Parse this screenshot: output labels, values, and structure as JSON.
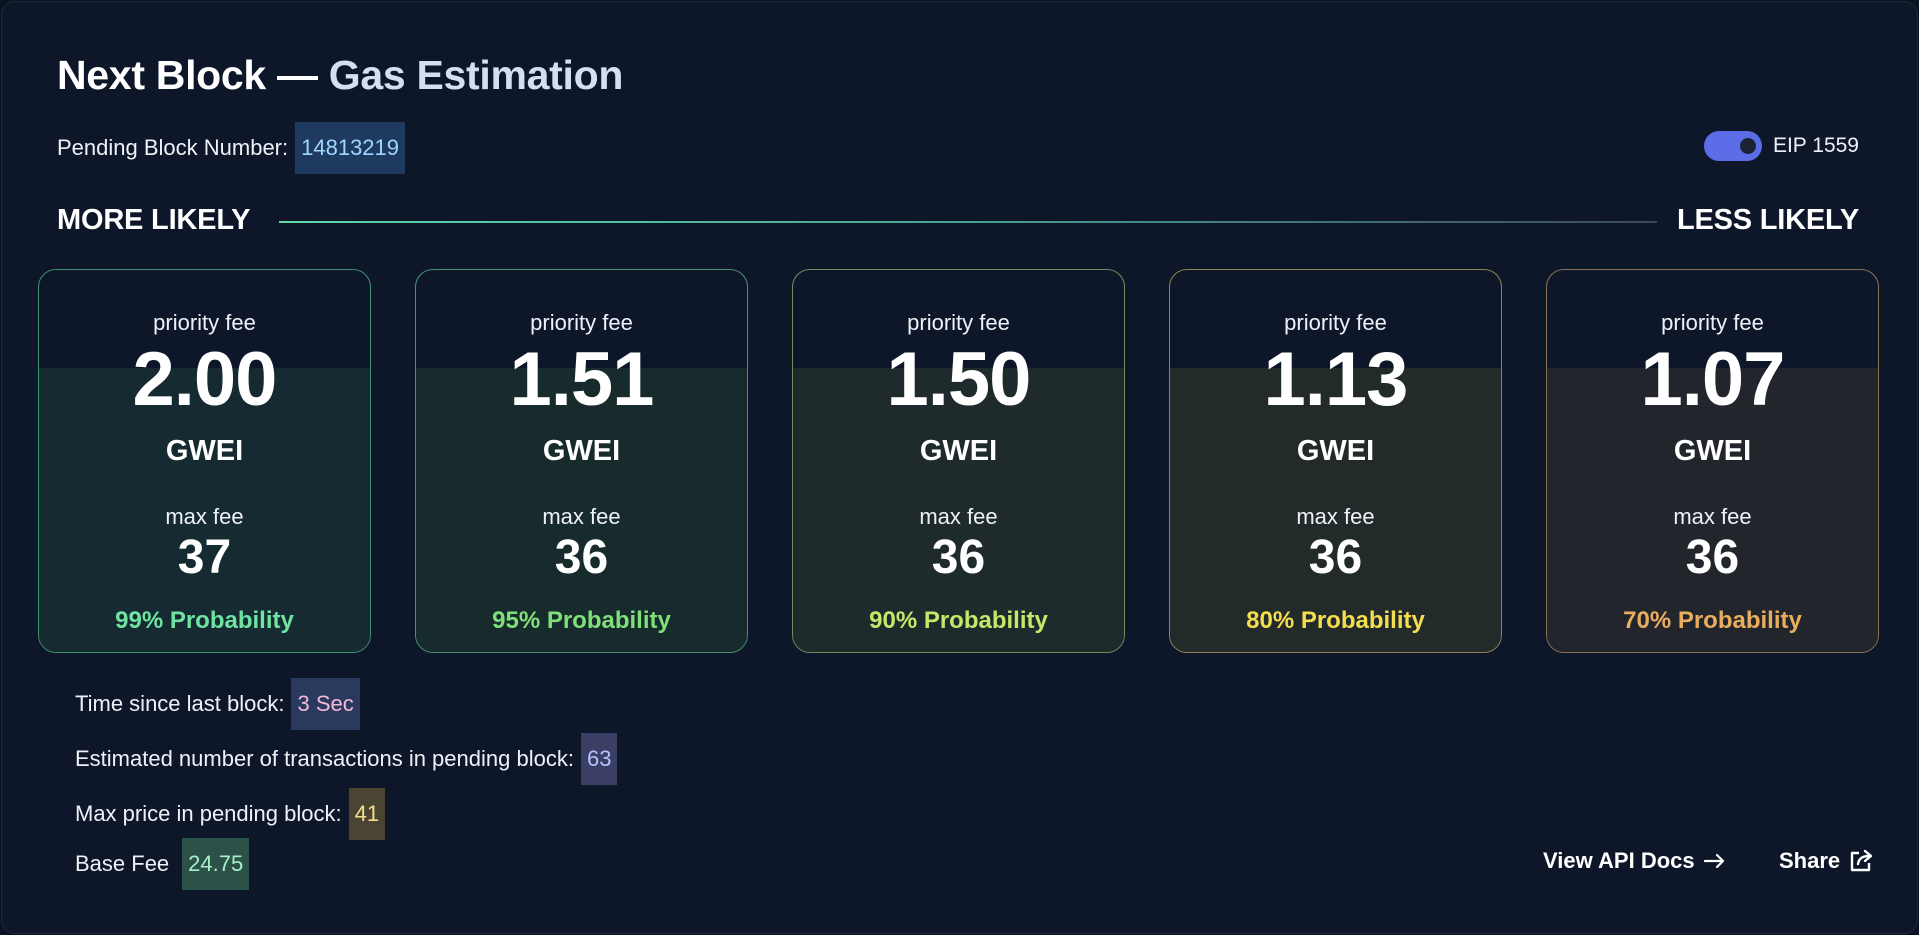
{
  "header": {
    "title_main": "Next Block — ",
    "title_accent": "Gas Estimation",
    "pending_label": "Pending Block Number:",
    "pending_value": "14813219",
    "eip_label": "EIP 1559",
    "eip_enabled": true
  },
  "likelihood": {
    "left_label": "MORE LIKELY",
    "right_label": "LESS LIKELY"
  },
  "cards": [
    {
      "priority_label": "priority fee",
      "priority_value": "2.00",
      "unit": "GWEI",
      "max_label": "max fee",
      "max_value": "37",
      "probability": "99% Probability",
      "color": "#6fe3a1",
      "border": "#3f8f73",
      "fill": "#152a31"
    },
    {
      "priority_label": "priority fee",
      "priority_value": "1.51",
      "unit": "GWEI",
      "max_label": "max fee",
      "max_value": "36",
      "probability": "95% Probability",
      "color": "#7fe07a",
      "border": "#4b8f70",
      "fill": "#172b2d"
    },
    {
      "priority_label": "priority fee",
      "priority_value": "1.50",
      "unit": "GWEI",
      "max_label": "max fee",
      "max_value": "36",
      "probability": "90% Probability",
      "color": "#c3e86a",
      "border": "#6f8f5f",
      "fill": "#1e2a2b"
    },
    {
      "priority_label": "priority fee",
      "priority_value": "1.13",
      "unit": "GWEI",
      "max_label": "max fee",
      "max_value": "36",
      "probability": "80% Probability",
      "color": "#f4dd4f",
      "border": "#8f8550",
      "fill": "#232a2a"
    },
    {
      "priority_label": "priority fee",
      "priority_value": "1.07",
      "unit": "GWEI",
      "max_label": "max fee",
      "max_value": "36",
      "probability": "70% Probability",
      "color": "#e9ad5e",
      "border": "#8a7355",
      "fill": "#22252b"
    }
  ],
  "stats": {
    "time_label": "Time since last block:",
    "time_value": "3 Sec",
    "tx_label": "Estimated number of transactions in pending block:",
    "tx_value": "63",
    "max_price_label": "Max price in pending block:",
    "max_price_value": "41",
    "base_fee_label": "Base Fee",
    "base_fee_value": "24.75"
  },
  "actions": {
    "api_docs_label": "View API Docs",
    "share_label": "Share"
  },
  "colors": {
    "background": "#0e1729",
    "accent_toggle": "#5b6ee8",
    "pending_chip_bg": "#1f3a5f",
    "pending_chip_text": "#9fd6ff",
    "time_chip_bg": "#2a3a5e",
    "time_chip_text": "#f5b8d8",
    "tx_chip_bg": "#3b3f65",
    "tx_chip_text": "#b9c2ff",
    "max_chip_bg": "#4a4533",
    "max_chip_text": "#f7dd8a",
    "base_chip_bg": "#2b5148",
    "base_chip_text": "#a8f0c8"
  },
  "icons": {
    "api_docs": "arrow-right-icon",
    "share": "share-icon"
  }
}
